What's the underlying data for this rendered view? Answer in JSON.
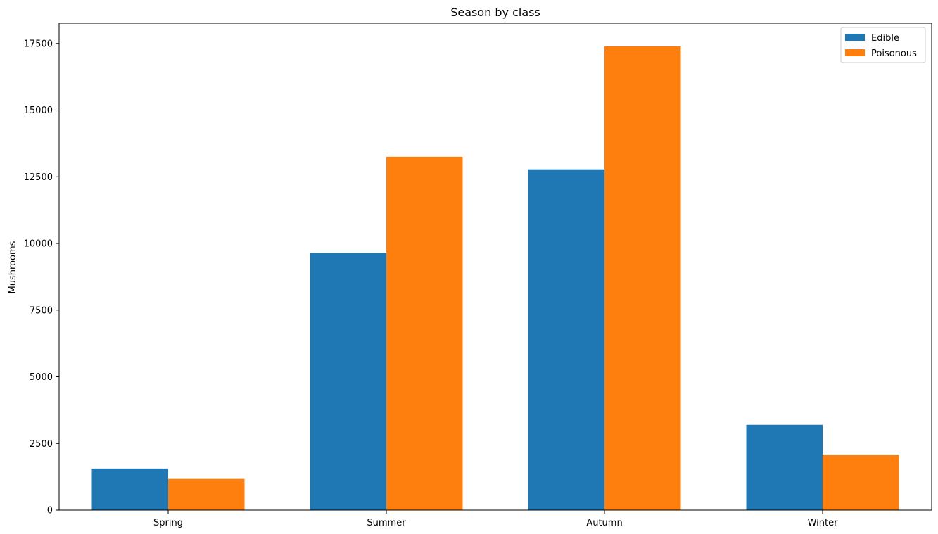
{
  "chart_data": {
    "type": "bar",
    "title": "Season by class",
    "xlabel": "",
    "ylabel": "Mushrooms",
    "categories": [
      "Spring",
      "Summer",
      "Autumn",
      "Winter"
    ],
    "series": [
      {
        "name": "Edible",
        "values": [
          1560,
          9650,
          12780,
          3200
        ],
        "color": "#1f77b4"
      },
      {
        "name": "Poisonous",
        "values": [
          1170,
          13250,
          17390,
          2060
        ],
        "color": "#ff7f0e"
      }
    ],
    "ylim": [
      0,
      18260
    ],
    "yticks": [
      0,
      2500,
      5000,
      7500,
      10000,
      12500,
      15000,
      17500
    ],
    "grid": false,
    "legend": "top-right"
  }
}
